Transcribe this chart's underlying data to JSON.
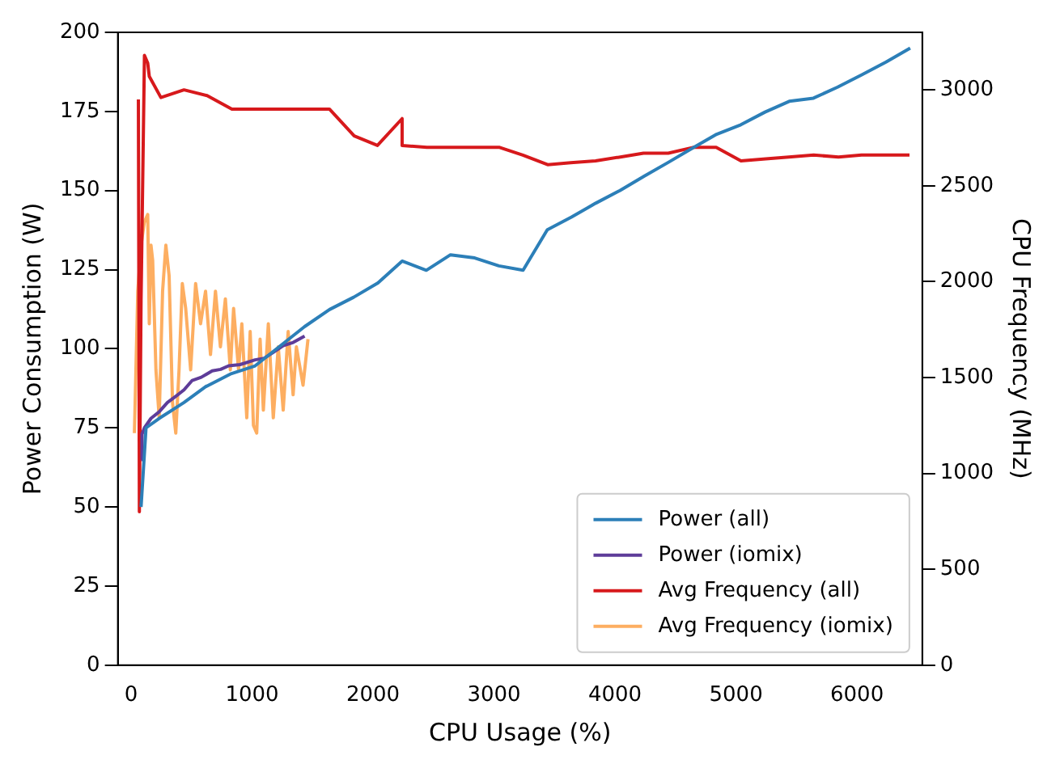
{
  "chart_data": {
    "type": "line",
    "xlabel": "CPU Usage (%)",
    "ylabel": "Power Consumption (W)",
    "y2label": "CPU Frequency (MHz)",
    "xlim": [
      -110,
      6540
    ],
    "xticks": [
      0,
      1000,
      2000,
      3000,
      4000,
      5000,
      6000
    ],
    "ylim": [
      0,
      200
    ],
    "yticks": [
      0,
      25,
      50,
      75,
      100,
      125,
      150,
      175,
      200
    ],
    "y2lim": [
      0,
      3300
    ],
    "y2ticks": [
      0,
      500,
      1000,
      1500,
      2000,
      2500,
      3000
    ],
    "legend": "bottom right",
    "grid": false,
    "marker": "none",
    "line_style": "solid",
    "series": [
      {
        "name": "Power (all)",
        "color": "#2c7fb8",
        "x": [
          82,
          123,
          232,
          437,
          615,
          820,
          1025,
          1434,
          1640,
          1840,
          2040,
          2240,
          2440,
          2640,
          2840,
          3040,
          3240,
          3440,
          3640,
          3840,
          4040,
          4240,
          4440,
          4640,
          4840,
          5040,
          5240,
          5440,
          5640,
          5840,
          6040,
          6240,
          6440
        ],
        "values": [
          50,
          75,
          78,
          83,
          88,
          92,
          94.6,
          107,
          112.4,
          116.3,
          120.8,
          127.7,
          124.8,
          129.7,
          128.7,
          126.2,
          124.8,
          137.6,
          141.6,
          146,
          150,
          154.5,
          158.9,
          163.4,
          167.8,
          170.8,
          174.8,
          178.2,
          179.2,
          182.7,
          186.6,
          190.6,
          195
        ]
      },
      {
        "name": "Power (iomix)",
        "color": "#5e3c99",
        "x": [
          82,
          90,
          110,
          164,
          230,
          300,
          370,
          437,
          505,
          580,
          670,
          740,
          806,
          900,
          1025,
          1100,
          1180,
          1257,
          1340,
          1434
        ],
        "values": [
          65,
          73,
          75,
          78,
          80,
          83,
          85,
          87,
          90,
          91,
          93,
          93.5,
          94.6,
          95,
          96.5,
          97,
          99,
          101,
          102,
          104
        ]
      },
      {
        "name": "Avg Frequency (all)",
        "color": "#d7191c",
        "axis": "y2",
        "x": [
          60,
          68,
          82,
          110,
          137,
          150,
          246,
          437,
          628,
          833,
          1038,
          1243,
          1434,
          1639,
          1844,
          2036,
          2240,
          2240,
          2445,
          2637,
          2842,
          3046,
          3238,
          3443,
          3634,
          3839,
          4044,
          4235,
          4440,
          4645,
          4836,
          5041,
          5246,
          5437,
          5642,
          5847,
          6038,
          6243,
          6434
        ],
        "values": [
          2950,
          800,
          1900,
          3180,
          3140,
          3070,
          2960,
          3000,
          2970,
          2900,
          2900,
          2900,
          2900,
          2900,
          2760,
          2710,
          2850,
          2710,
          2700,
          2700,
          2700,
          2700,
          2660,
          2610,
          2620,
          2630,
          2650,
          2670,
          2670,
          2700,
          2700,
          2630,
          2640,
          2650,
          2660,
          2650,
          2660,
          2660,
          2660
        ]
      },
      {
        "name": "Avg Frequency (iomix)",
        "color": "#fdae61",
        "axis": "y2",
        "x": [
          27,
          55,
          82,
          109,
          137,
          150,
          164,
          178,
          205,
          232,
          260,
          287,
          314,
          342,
          369,
          396,
          423,
          451,
          492,
          533,
          574,
          615,
          656,
          697,
          738,
          779,
          820,
          847,
          888,
          915,
          956,
          984,
          1011,
          1038,
          1066,
          1093,
          1134,
          1175,
          1216,
          1257,
          1298,
          1339,
          1366,
          1421,
          1462
        ],
        "values": [
          1210,
          1950,
          2190,
          2310,
          2350,
          1780,
          2190,
          2110,
          1540,
          1290,
          1950,
          2190,
          2030,
          1370,
          1210,
          1540,
          1990,
          1860,
          1540,
          1990,
          1780,
          1950,
          1620,
          1950,
          1660,
          1910,
          1540,
          1860,
          1540,
          1780,
          1290,
          1740,
          1250,
          1210,
          1700,
          1330,
          1780,
          1290,
          1660,
          1330,
          1740,
          1410,
          1660,
          1460,
          1700
        ]
      }
    ]
  }
}
